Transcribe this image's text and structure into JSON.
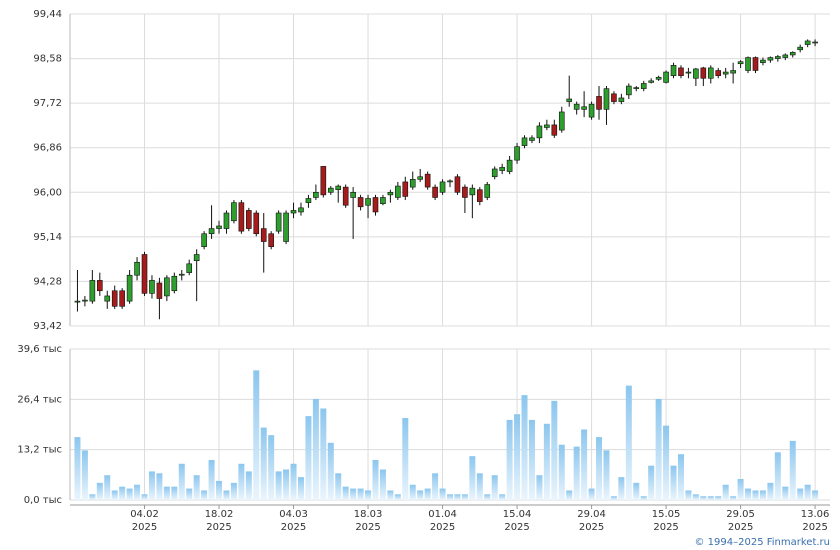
{
  "chart_data": [
    {
      "type": "candlestick",
      "xlim": [
        -1,
        101
      ],
      "ylim": [
        93.42,
        99.44
      ],
      "yticks": [
        {
          "value": 93.42,
          "label": "93,42"
        },
        {
          "value": 94.28,
          "label": "94,28"
        },
        {
          "value": 95.14,
          "label": "95,14"
        },
        {
          "value": 96.0,
          "label": "96,00"
        },
        {
          "value": 96.86,
          "label": "96,86"
        },
        {
          "value": 97.72,
          "label": "97,72"
        },
        {
          "value": 98.58,
          "label": "98,58"
        },
        {
          "value": 99.44,
          "label": "99,44"
        }
      ],
      "grid": true,
      "up_color": "#2e9e2e",
      "down_color": "#a41c1c",
      "open": [
        93.9,
        93.9,
        93.9,
        94.3,
        93.9,
        94.1,
        94.1,
        93.9,
        94.4,
        94.8,
        94.05,
        94.25,
        94.0,
        94.1,
        94.4,
        94.45,
        94.68,
        94.95,
        95.2,
        95.3,
        95.3,
        95.45,
        95.8,
        95.65,
        95.6,
        95.3,
        95.2,
        95.25,
        95.05,
        95.6,
        95.62,
        95.8,
        95.9,
        96.5,
        96.0,
        96.05,
        96.1,
        95.9,
        95.9,
        95.75,
        95.9,
        95.78,
        95.95,
        95.9,
        96.2,
        96.1,
        96.25,
        96.35,
        96.1,
        96.0,
        96.2,
        96.3,
        96.1,
        95.95,
        96.05,
        95.9,
        96.3,
        96.42,
        96.4,
        96.62,
        96.9,
        97.0,
        97.05,
        97.25,
        97.3,
        97.2,
        97.75,
        97.6,
        97.6,
        97.45,
        97.85,
        97.6,
        97.9,
        97.75,
        97.88,
        98.0,
        98.0,
        98.12,
        98.18,
        98.12,
        98.25,
        98.4,
        98.3,
        98.2,
        98.4,
        98.2,
        98.35,
        98.28,
        98.3,
        98.48,
        98.35,
        98.6,
        98.5,
        98.55,
        98.58,
        98.6,
        98.65,
        98.75,
        98.85,
        98.88
      ],
      "high": [
        94.5,
        94.0,
        94.5,
        94.45,
        94.1,
        94.2,
        94.15,
        94.5,
        94.75,
        94.85,
        94.4,
        94.35,
        94.4,
        94.45,
        94.5,
        94.7,
        94.9,
        95.25,
        95.75,
        95.45,
        95.65,
        95.85,
        95.85,
        95.7,
        95.65,
        95.6,
        95.25,
        95.65,
        95.65,
        95.8,
        95.8,
        95.95,
        96.15,
        96.5,
        96.12,
        96.15,
        96.15,
        96.1,
        95.95,
        95.95,
        95.95,
        95.95,
        96.05,
        96.2,
        96.3,
        96.4,
        96.45,
        96.4,
        96.15,
        96.25,
        96.25,
        96.35,
        96.15,
        96.15,
        96.1,
        96.2,
        96.5,
        96.55,
        96.7,
        96.95,
        97.1,
        97.1,
        97.35,
        97.4,
        97.4,
        97.65,
        98.25,
        97.75,
        97.95,
        97.75,
        98.05,
        98.05,
        97.95,
        97.9,
        98.1,
        98.05,
        98.15,
        98.2,
        98.25,
        98.35,
        98.5,
        98.45,
        98.4,
        98.4,
        98.42,
        98.45,
        98.4,
        98.4,
        98.5,
        98.55,
        98.62,
        98.62,
        98.6,
        98.62,
        98.65,
        98.68,
        98.72,
        98.85,
        98.95,
        98.95
      ],
      "low": [
        93.7,
        93.8,
        93.85,
        94.0,
        93.75,
        93.75,
        93.75,
        93.85,
        94.3,
        94.0,
        93.95,
        93.55,
        93.9,
        94.05,
        94.3,
        94.4,
        93.9,
        94.9,
        95.1,
        95.2,
        95.2,
        95.4,
        95.2,
        95.25,
        95.15,
        94.45,
        94.9,
        95.2,
        95.0,
        95.5,
        95.55,
        95.7,
        95.85,
        95.9,
        95.95,
        95.8,
        95.7,
        95.1,
        95.65,
        95.5,
        95.55,
        95.75,
        95.8,
        95.85,
        95.85,
        96.05,
        96.2,
        96.05,
        95.85,
        95.95,
        96.1,
        95.95,
        95.6,
        95.5,
        95.75,
        95.85,
        96.25,
        96.35,
        96.35,
        96.55,
        96.85,
        96.95,
        96.95,
        97.2,
        97.05,
        97.15,
        97.65,
        97.5,
        97.45,
        97.4,
        97.4,
        97.3,
        97.7,
        97.7,
        97.8,
        97.95,
        97.95,
        98.1,
        98.15,
        98.1,
        98.2,
        98.2,
        98.2,
        98.05,
        98.05,
        98.1,
        98.2,
        98.2,
        98.1,
        98.4,
        98.3,
        98.3,
        98.45,
        98.5,
        98.52,
        98.55,
        98.6,
        98.7,
        98.8,
        98.82
      ],
      "close": [
        93.9,
        93.92,
        94.3,
        94.1,
        94.0,
        93.8,
        93.8,
        94.4,
        94.65,
        94.05,
        94.3,
        93.95,
        94.35,
        94.38,
        94.42,
        94.62,
        94.8,
        95.2,
        95.3,
        95.35,
        95.6,
        95.8,
        95.25,
        95.3,
        95.2,
        95.05,
        94.95,
        95.6,
        95.6,
        95.65,
        95.7,
        95.88,
        96.0,
        95.95,
        96.08,
        96.12,
        95.75,
        96.0,
        95.72,
        95.88,
        95.62,
        95.9,
        96.0,
        96.12,
        95.92,
        96.25,
        96.3,
        96.1,
        95.9,
        96.2,
        96.22,
        96.0,
        95.9,
        96.08,
        95.82,
        96.15,
        96.45,
        96.48,
        96.62,
        96.88,
        97.05,
        97.05,
        97.28,
        97.3,
        97.1,
        97.55,
        97.8,
        97.7,
        97.65,
        97.7,
        97.6,
        98.0,
        97.75,
        97.82,
        98.05,
        98.02,
        98.1,
        98.15,
        98.22,
        98.32,
        98.45,
        98.25,
        98.32,
        98.38,
        98.2,
        98.4,
        98.25,
        98.32,
        98.35,
        98.52,
        98.6,
        98.35,
        98.55,
        98.6,
        98.62,
        98.65,
        98.7,
        98.8,
        98.92,
        98.9
      ]
    },
    {
      "type": "bar",
      "xlim": [
        -1,
        101
      ],
      "ylim": [
        0,
        39.6
      ],
      "yticks": [
        {
          "value": 0,
          "label": "0,0 тыс"
        },
        {
          "value": 13.2,
          "label": "13,2 тыс"
        },
        {
          "value": 26.4,
          "label": "26,4 тыс"
        },
        {
          "value": 39.6,
          "label": "39,6 тыс"
        }
      ],
      "xticks": [
        {
          "value": 9,
          "label": [
            "04.02",
            "2025"
          ]
        },
        {
          "value": 19,
          "label": [
            "18.02",
            "2025"
          ]
        },
        {
          "value": 29,
          "label": [
            "04.03",
            "2025"
          ]
        },
        {
          "value": 39,
          "label": [
            "18.03",
            "2025"
          ]
        },
        {
          "value": 49,
          "label": [
            "01.04",
            "2025"
          ]
        },
        {
          "value": 59,
          "label": [
            "15.04",
            "2025"
          ]
        },
        {
          "value": 69,
          "label": [
            "29.04",
            "2025"
          ]
        },
        {
          "value": 79,
          "label": [
            "15.05",
            "2025"
          ]
        },
        {
          "value": 89,
          "label": [
            "29.05",
            "2025"
          ]
        },
        {
          "value": 99,
          "label": [
            "13.06",
            "2025"
          ]
        }
      ],
      "grid": true,
      "color": "#8cc6ee",
      "values": [
        16.5,
        13,
        1.5,
        4.5,
        6.5,
        2.5,
        3.5,
        3,
        4,
        1.5,
        7.5,
        7,
        3.5,
        3.5,
        9.5,
        3,
        6.5,
        2.5,
        10.5,
        5,
        2.5,
        4.5,
        9.5,
        7.5,
        34,
        19,
        17,
        7.5,
        8,
        9.5,
        6,
        22,
        26.5,
        24,
        15,
        7,
        3.5,
        3,
        3,
        2.5,
        10.5,
        8,
        2.5,
        1.5,
        21.5,
        4,
        2.5,
        3,
        7,
        3,
        1.5,
        1.5,
        1.5,
        11.5,
        7,
        1.5,
        6.5,
        1.5,
        21,
        22.5,
        27.5,
        21,
        6.5,
        20,
        26,
        14.5,
        2.5,
        14,
        18.5,
        3,
        16.5,
        13,
        1,
        6,
        30,
        4.5,
        1,
        9,
        26.5,
        19.5,
        9,
        12,
        2.5,
        1.5,
        1,
        1,
        1,
        4,
        1,
        5.5,
        3,
        2.5,
        2.5,
        4.5,
        12.5,
        3.5,
        15.5,
        3,
        4,
        2.5
      ]
    }
  ],
  "copyright": "© 1994–2025 Finmarket.ru"
}
